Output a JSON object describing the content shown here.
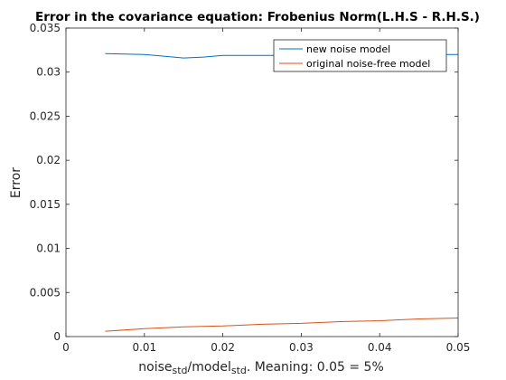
{
  "chart_data": {
    "type": "line",
    "title": "Error in the covariance equation: Frobenius Norm(L.H.S - R.H.S.)",
    "xlabel": {
      "parts": [
        {
          "text": "noise",
          "sub": false
        },
        {
          "text": "std",
          "sub": true
        },
        {
          "text": "/model",
          "sub": false
        },
        {
          "text": "std",
          "sub": true
        },
        {
          "text": ". Meaning: 0.05 = 5%",
          "sub": false
        }
      ]
    },
    "ylabel": "Error",
    "xlim": [
      0,
      0.05
    ],
    "ylim": [
      0,
      0.035
    ],
    "xticks": [
      0,
      0.01,
      0.02,
      0.03,
      0.04,
      0.05
    ],
    "xtick_labels": [
      "0",
      "0.01",
      "0.02",
      "0.03",
      "0.04",
      "0.05"
    ],
    "yticks": [
      0,
      0.005,
      0.01,
      0.015,
      0.02,
      0.025,
      0.03,
      0.035
    ],
    "ytick_labels": [
      "0",
      "0.005",
      "0.01",
      "0.015",
      "0.02",
      "0.025",
      "0.03",
      "0.035"
    ],
    "grid": false,
    "legend_position": "top-right",
    "series": [
      {
        "name": "new noise model",
        "color": "#0072BD",
        "x": [
          0.005,
          0.01,
          0.0125,
          0.015,
          0.0175,
          0.02,
          0.025,
          0.03,
          0.035,
          0.04,
          0.045,
          0.05
        ],
        "y": [
          0.0321,
          0.032,
          0.0318,
          0.0316,
          0.0317,
          0.0319,
          0.0319,
          0.0319,
          0.032,
          0.032,
          0.032,
          0.032
        ]
      },
      {
        "name": "original noise-free model",
        "color": "#D95319",
        "x": [
          0.005,
          0.01,
          0.015,
          0.02,
          0.025,
          0.03,
          0.035,
          0.04,
          0.045,
          0.05
        ],
        "y": [
          0.0006,
          0.0009,
          0.0011,
          0.0012,
          0.0014,
          0.0015,
          0.0017,
          0.0018,
          0.002,
          0.0021
        ]
      }
    ]
  }
}
